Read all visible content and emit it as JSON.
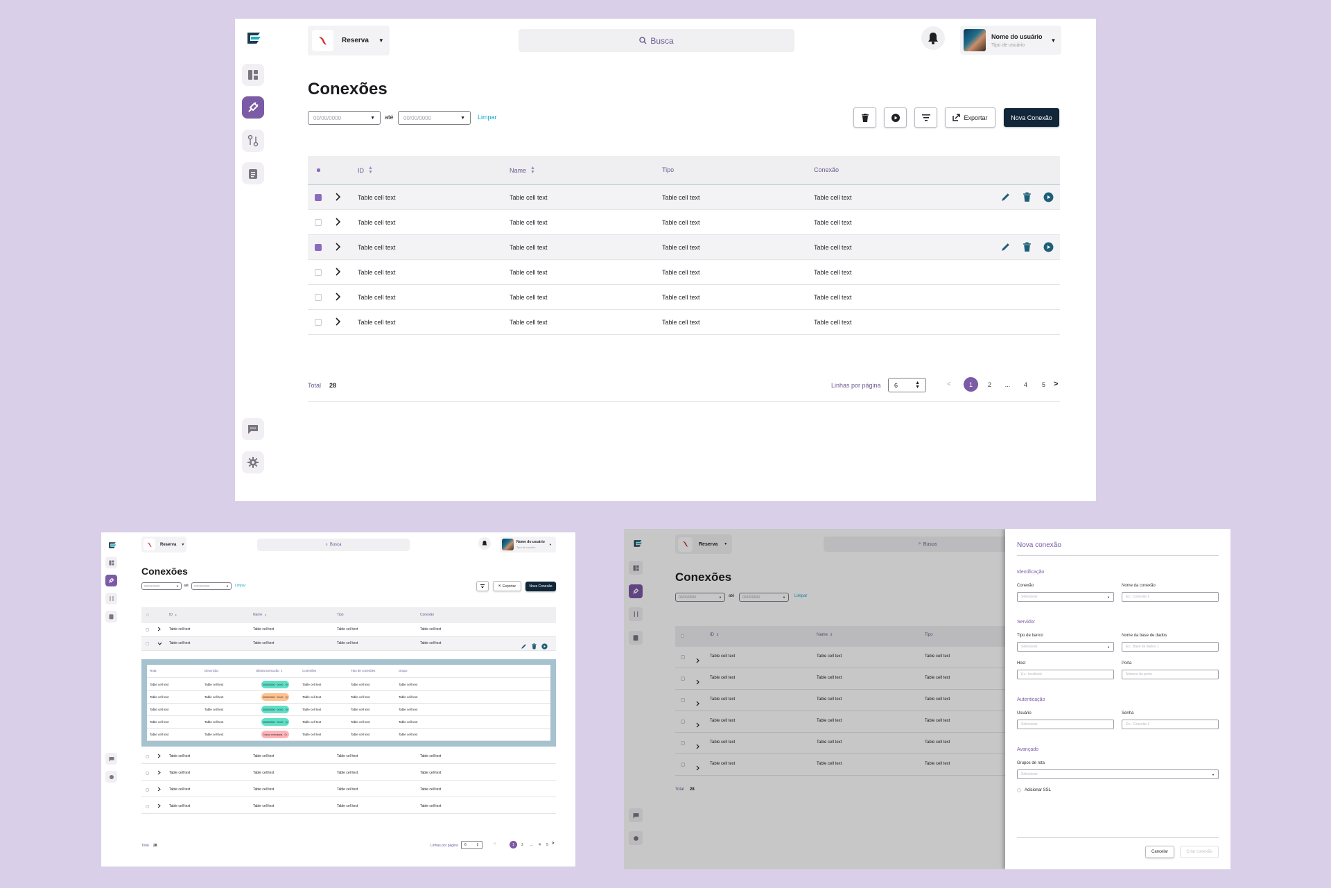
{
  "app": {
    "brand": "Reserva",
    "search_placeholder": "Busca",
    "user_name": "Nome do usuário",
    "user_type": "Tipo de usuário"
  },
  "page": {
    "title": "Conexões",
    "date_placeholder": "00/00/0000",
    "date_sep": "até",
    "clear_label": "Limpar",
    "export_label": "Exportar",
    "new_label": "Nova Conexão"
  },
  "table": {
    "columns": [
      "ID",
      "Name",
      "Tipo",
      "Conexão"
    ],
    "cell_text": "Table cell text",
    "rows_main": [
      {
        "checked": true
      },
      {
        "checked": false
      },
      {
        "checked": true
      },
      {
        "checked": false
      },
      {
        "checked": false
      },
      {
        "checked": false
      }
    ],
    "total_label": "Total",
    "total_value": "28",
    "rows_per_page_label": "Linhas por página",
    "rows_per_page_value": "6",
    "pages": [
      "1",
      "2",
      "...",
      "4",
      "5"
    ],
    "current_page": "1"
  },
  "subtable": {
    "columns": [
      "Rota",
      "Descrição",
      "Última Execução",
      "Conexões",
      "Tipo de conexões",
      "Grupo"
    ],
    "tags": [
      {
        "text": "00/00/0000 · 00:00",
        "color": "#5fe0c6"
      },
      {
        "text": "00/00/0000 · 00:00",
        "color": "#ffc28f"
      },
      {
        "text": "00/00/0000 · 00:00",
        "color": "#5fe0c6"
      },
      {
        "text": "00/00/0000 · 00:00",
        "color": "#5fe0c6"
      },
      {
        "text": "Nunca executada",
        "color": "#ffb3b8"
      }
    ]
  },
  "drawer": {
    "title": "Nova conexão",
    "sections": {
      "identificacao": "Identificação",
      "servidor": "Servidor",
      "autenticacao": "Autenticação",
      "avancado": "Avançado"
    },
    "fields": {
      "conexao": {
        "label": "Conexão",
        "placeholder": "Selecionar"
      },
      "nome_conexao": {
        "label": "Nome da conexão",
        "placeholder": "Ex.: Conexão 1"
      },
      "tipo_banco": {
        "label": "Tipo de banco",
        "placeholder": "Selecionar"
      },
      "nome_base": {
        "label": "Nome da base de dados",
        "placeholder": "Ex.: Base de dados 1"
      },
      "host": {
        "label": "Host",
        "placeholder": "Ex.: localhost"
      },
      "porta": {
        "label": "Porta",
        "placeholder": "Número da porta"
      },
      "usuario": {
        "label": "Usuário",
        "placeholder": "Selecionar"
      },
      "senha": {
        "label": "Senha",
        "placeholder": "Ex.: Conexão 1"
      },
      "grupos_rota": {
        "label": "Grupos de rota",
        "placeholder": "Selecionar"
      }
    },
    "ssl_label": "Adicionar SSL",
    "cancel_label": "Cancelar",
    "submit_label": "Criar conexão"
  },
  "colors": {
    "accent": "#7b5aa6",
    "primary_dark": "#12263a",
    "link": "#12a7d4",
    "icon_teal": "#1e5f78",
    "background": "#d9cfe8"
  }
}
